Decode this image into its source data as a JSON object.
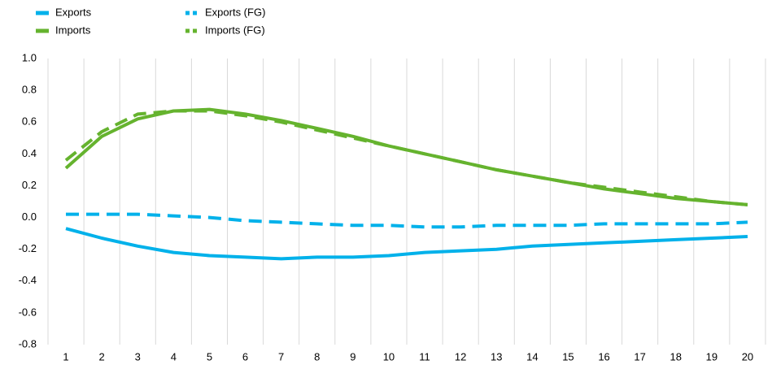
{
  "chart_data": {
    "type": "line",
    "categories": [
      "1",
      "2",
      "3",
      "4",
      "5",
      "6",
      "7",
      "8",
      "9",
      "10",
      "11",
      "12",
      "13",
      "14",
      "15",
      "16",
      "17",
      "18",
      "19",
      "20"
    ],
    "series": [
      {
        "name": "Exports",
        "color": "#00b1ea",
        "style": "solid",
        "values": [
          -0.07,
          -0.13,
          -0.18,
          -0.22,
          -0.24,
          -0.25,
          -0.26,
          -0.25,
          -0.25,
          -0.24,
          -0.22,
          -0.21,
          -0.2,
          -0.18,
          -0.17,
          -0.16,
          -0.15,
          -0.14,
          -0.13,
          -0.12
        ]
      },
      {
        "name": "Imports",
        "color": "#65b32e",
        "style": "solid",
        "values": [
          0.31,
          0.51,
          0.62,
          0.67,
          0.68,
          0.65,
          0.61,
          0.56,
          0.51,
          0.45,
          0.4,
          0.35,
          0.3,
          0.26,
          0.22,
          0.18,
          0.15,
          0.12,
          0.1,
          0.08
        ]
      },
      {
        "name": "Exports (FG)",
        "color": "#00b1ea",
        "style": "dashed",
        "values": [
          0.02,
          0.02,
          0.02,
          0.01,
          0,
          -0.02,
          -0.03,
          -0.04,
          -0.05,
          -0.05,
          -0.06,
          -0.06,
          -0.05,
          -0.05,
          -0.05,
          -0.04,
          -0.04,
          -0.04,
          -0.04,
          -0.03
        ]
      },
      {
        "name": "Imports (FG)",
        "color": "#65b32e",
        "style": "dashed",
        "values": [
          0.36,
          0.54,
          0.65,
          0.67,
          0.67,
          0.64,
          0.6,
          0.55,
          0.5,
          0.45,
          0.4,
          0.35,
          0.3,
          0.26,
          0.22,
          0.19,
          0.16,
          0.13,
          0.1,
          0.08
        ]
      }
    ],
    "ylim": [
      -0.8,
      1
    ],
    "yticks": [
      {
        "value": 1,
        "label": "1.0"
      },
      0.8,
      0.6,
      0.4,
      0.2,
      {
        "value": 0,
        "label": "0.0"
      },
      -0.2,
      -0.4,
      -0.6,
      -0.8
    ],
    "grid": "x",
    "legend": "top-left"
  }
}
